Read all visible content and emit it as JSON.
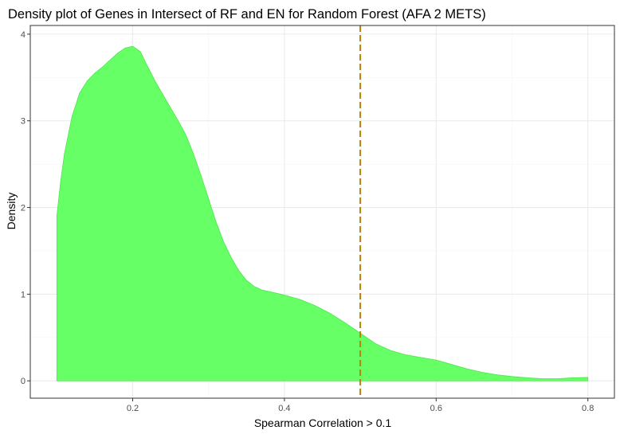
{
  "chart_data": {
    "type": "area",
    "title": "Density plot of Genes in Intersect of RF and EN for Random Forest (AFA 2 METS)",
    "xlabel": "Spearman Correlation > 0.1",
    "ylabel": "Density",
    "xlim": [
      0.065,
      0.835
    ],
    "ylim": [
      -0.2,
      4.1
    ],
    "x_ticks": [
      0.2,
      0.4,
      0.6,
      0.8
    ],
    "x_tick_labels": [
      "0.2",
      "0.4",
      "0.6",
      "0.8"
    ],
    "y_ticks": [
      0,
      1,
      2,
      3,
      4
    ],
    "y_tick_labels": [
      "0",
      "1",
      "2",
      "3",
      "4"
    ],
    "grid": true,
    "legend": "none",
    "series": [
      {
        "x": [
          0.1,
          0.105,
          0.11,
          0.12,
          0.13,
          0.14,
          0.15,
          0.16,
          0.17,
          0.18,
          0.19,
          0.2,
          0.21,
          0.22,
          0.23,
          0.24,
          0.25,
          0.26,
          0.27,
          0.28,
          0.29,
          0.3,
          0.31,
          0.32,
          0.33,
          0.34,
          0.35,
          0.36,
          0.37,
          0.38,
          0.39,
          0.4,
          0.42,
          0.44,
          0.46,
          0.48,
          0.5,
          0.52,
          0.54,
          0.56,
          0.58,
          0.6,
          0.62,
          0.64,
          0.66,
          0.68,
          0.7,
          0.72,
          0.74,
          0.76,
          0.78,
          0.8
        ],
        "y": [
          1.9,
          2.3,
          2.62,
          3.05,
          3.32,
          3.46,
          3.55,
          3.62,
          3.7,
          3.78,
          3.84,
          3.86,
          3.8,
          3.62,
          3.45,
          3.3,
          3.15,
          3.0,
          2.84,
          2.62,
          2.37,
          2.1,
          1.83,
          1.6,
          1.42,
          1.27,
          1.16,
          1.09,
          1.05,
          1.03,
          1.01,
          0.99,
          0.94,
          0.87,
          0.78,
          0.67,
          0.55,
          0.43,
          0.35,
          0.3,
          0.27,
          0.24,
          0.19,
          0.14,
          0.1,
          0.07,
          0.05,
          0.035,
          0.025,
          0.025,
          0.035,
          0.04
        ],
        "fill": "#66ff66",
        "stroke": "#4de64d"
      }
    ],
    "reference_line": {
      "x": 0.5,
      "color": "#b8860b",
      "style": "dashed"
    },
    "colors": {
      "panel_border": "#333333",
      "grid_major": "#ebebeb",
      "grid_minor": "#f5f5f5",
      "tick_text": "#4d4d4d"
    }
  }
}
